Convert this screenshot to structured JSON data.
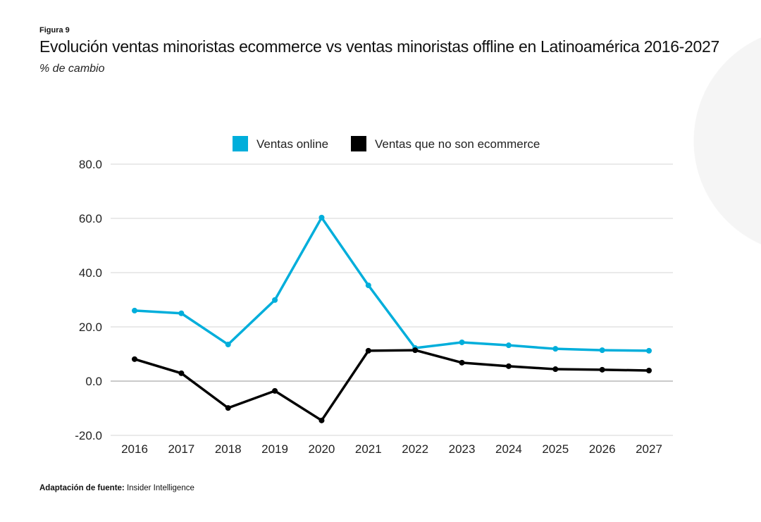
{
  "figure_label": "Figura 9",
  "source_label": "Adaptación de fuente:",
  "source_value": "Insider Intelligence",
  "chart_data": {
    "type": "line",
    "title": "Evolución ventas minoristas ecommerce vs ventas minoristas offline en Latinoamérica 2016-2027",
    "subtitle": "% de cambio",
    "xlabel": "",
    "ylabel": "",
    "x": [
      "2016",
      "2017",
      "2018",
      "2019",
      "2020",
      "2021",
      "2022",
      "2023",
      "2024",
      "2025",
      "2026",
      "2027"
    ],
    "ylim": [
      -20,
      80
    ],
    "yticks": [
      "80.0",
      "60.0",
      "40.0",
      "20.0",
      "0.0",
      "-20.0"
    ],
    "ytick_values": [
      80,
      60,
      40,
      20,
      0,
      -20
    ],
    "grid": true,
    "legend_position": "top-center",
    "series": [
      {
        "name": "Ventas online",
        "color": "#00aedb",
        "values": [
          26.0,
          25.0,
          13.5,
          29.9,
          60.3,
          35.3,
          12.2,
          14.3,
          13.2,
          11.9,
          11.4,
          11.2
        ]
      },
      {
        "name": "Ventas que no son ecommerce",
        "color": "#000000",
        "values": [
          8.1,
          2.9,
          -9.9,
          -3.6,
          -14.5,
          11.2,
          11.4,
          6.8,
          5.5,
          4.4,
          4.2,
          3.9
        ]
      }
    ]
  }
}
